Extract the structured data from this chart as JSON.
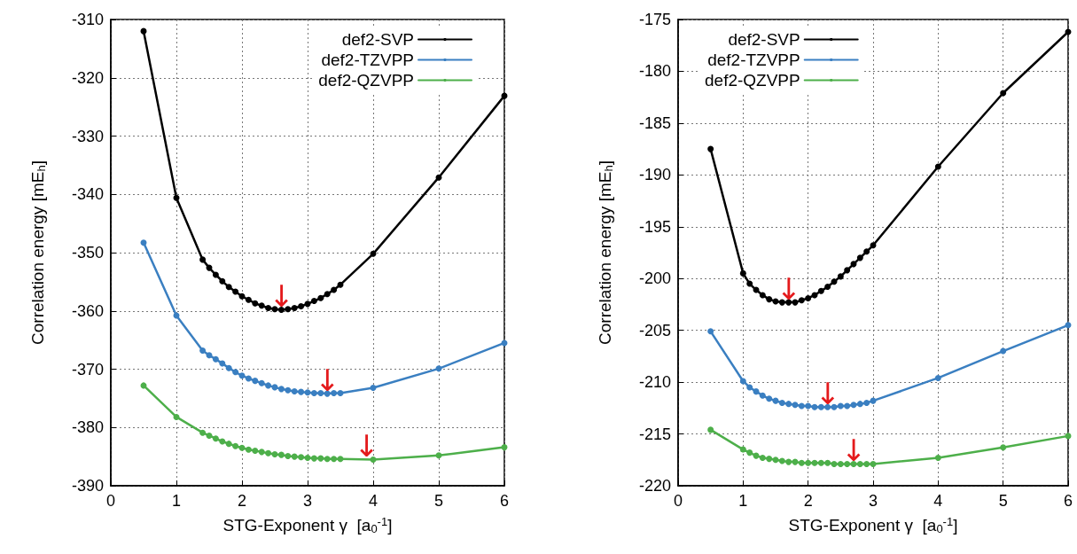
{
  "chart_data": [
    {
      "type": "line",
      "xlabel": "STG-Exponent γ  [a$_{0}$$^{-1}$]",
      "ylabel": "Correlation energy [mE$_{h}$]",
      "xlim": [
        0,
        6
      ],
      "xticks": [
        0,
        1,
        2,
        3,
        4,
        5,
        6
      ],
      "ylim": [
        -390,
        -310
      ],
      "yticks": [
        -390,
        -380,
        -370,
        -360,
        -350,
        -340,
        -330,
        -320,
        -310
      ],
      "grid": true,
      "legend": "top right",
      "marker": "circle",
      "line_style": "solid",
      "series": [
        {
          "name": "def2-SVP",
          "color": "#000000",
          "x": [
            0.5,
            1,
            1.4,
            1.5,
            1.6,
            1.7,
            1.8,
            1.9,
            2.0,
            2.1,
            2.2,
            2.3,
            2.4,
            2.5,
            2.6,
            2.7,
            2.8,
            2.9,
            3.0,
            3.1,
            3.2,
            3.3,
            3.4,
            3.5,
            4,
            5,
            6
          ],
          "values": [
            -312,
            -340.6,
            -351.2,
            -352.6,
            -353.8,
            -354.9,
            -355.9,
            -356.7,
            -357.5,
            -358.1,
            -358.7,
            -359.1,
            -359.5,
            -359.7,
            -359.8,
            -359.7,
            -359.5,
            -359.2,
            -358.8,
            -358.3,
            -357.8,
            -357.1,
            -356.4,
            -355.5,
            -350.2,
            -337.1,
            -323.1
          ]
        },
        {
          "name": "def2-TZVPP",
          "color": "#3a7fc1",
          "x": [
            0.5,
            1,
            1.4,
            1.5,
            1.6,
            1.7,
            1.8,
            1.9,
            2.0,
            2.1,
            2.2,
            2.3,
            2.4,
            2.5,
            2.6,
            2.7,
            2.8,
            2.9,
            3.0,
            3.1,
            3.2,
            3.3,
            3.4,
            3.5,
            4,
            5,
            6
          ],
          "values": [
            -348.3,
            -360.8,
            -366.8,
            -367.6,
            -368.3,
            -369.0,
            -369.8,
            -370.5,
            -371.1,
            -371.6,
            -372.0,
            -372.4,
            -372.8,
            -373.1,
            -373.4,
            -373.6,
            -373.8,
            -373.9,
            -374.0,
            -374.1,
            -374.1,
            -374.2,
            -374.1,
            -374.1,
            -373.2,
            -369.9,
            -365.5
          ]
        },
        {
          "name": "def2-QZVPP",
          "color": "#4daf4a",
          "x": [
            0.5,
            1,
            1.4,
            1.5,
            1.6,
            1.7,
            1.8,
            1.9,
            2.0,
            2.1,
            2.2,
            2.3,
            2.4,
            2.5,
            2.6,
            2.7,
            2.8,
            2.9,
            3.0,
            3.1,
            3.2,
            3.3,
            3.4,
            3.5,
            4,
            5,
            6
          ],
          "values": [
            -372.8,
            -378.2,
            -380.9,
            -381.4,
            -381.9,
            -382.4,
            -382.8,
            -383.2,
            -383.5,
            -383.8,
            -384.0,
            -384.2,
            -384.4,
            -384.6,
            -384.7,
            -384.9,
            -385.0,
            -385.1,
            -385.2,
            -385.3,
            -385.3,
            -385.4,
            -385.4,
            -385.4,
            -385.5,
            -384.8,
            -383.4
          ]
        }
      ],
      "annotations": [
        {
          "text": "↓",
          "x": 2.6,
          "y": -359.8
        },
        {
          "text": "↓",
          "x": 3.3,
          "y": -374.2
        },
        {
          "text": "↓",
          "x": 3.9,
          "y": -385.5
        }
      ]
    },
    {
      "type": "line",
      "xlabel": "STG-Exponent γ  [a$_{0}$$^{-1}$]",
      "ylabel": "Correlation energy [mE$_{h}$]",
      "xlim": [
        0,
        6
      ],
      "xticks": [
        0,
        1,
        2,
        3,
        4,
        5,
        6
      ],
      "ylim": [
        -220,
        -175
      ],
      "yticks": [
        -220,
        -215,
        -210,
        -205,
        -200,
        -195,
        -190,
        -185,
        -180,
        -175
      ],
      "grid": true,
      "legend": "top left",
      "marker": "circle",
      "line_style": "solid",
      "series": [
        {
          "name": "def2-SVP",
          "color": "#000000",
          "x": [
            0.5,
            1.0,
            1.1,
            1.2,
            1.3,
            1.4,
            1.5,
            1.6,
            1.7,
            1.8,
            1.9,
            2.0,
            2.1,
            2.2,
            2.3,
            2.4,
            2.5,
            2.6,
            2.7,
            2.8,
            2.9,
            3.0,
            4,
            5,
            6
          ],
          "values": [
            -187.5,
            -199.5,
            -200.5,
            -201.1,
            -201.6,
            -202.0,
            -202.2,
            -202.3,
            -202.3,
            -202.3,
            -202.1,
            -201.9,
            -201.6,
            -201.2,
            -200.8,
            -200.3,
            -199.8,
            -199.2,
            -198.6,
            -198.0,
            -197.4,
            -196.8,
            -189.2,
            -182.1,
            -176.2
          ]
        },
        {
          "name": "def2-TZVPP",
          "color": "#3a7fc1",
          "x": [
            0.5,
            1.0,
            1.1,
            1.2,
            1.3,
            1.4,
            1.5,
            1.6,
            1.7,
            1.8,
            1.9,
            2.0,
            2.1,
            2.2,
            2.3,
            2.4,
            2.5,
            2.6,
            2.7,
            2.8,
            2.9,
            3.0,
            4,
            5,
            6
          ],
          "values": [
            -205.1,
            -209.9,
            -210.5,
            -210.9,
            -211.3,
            -211.6,
            -211.8,
            -212.0,
            -212.1,
            -212.2,
            -212.3,
            -212.3,
            -212.4,
            -212.4,
            -212.4,
            -212.4,
            -212.3,
            -212.3,
            -212.2,
            -212.1,
            -212.0,
            -211.8,
            -209.6,
            -207.0,
            -204.5
          ]
        },
        {
          "name": "def2-QZVPP",
          "color": "#4daf4a",
          "x": [
            0.5,
            1.0,
            1.1,
            1.2,
            1.3,
            1.4,
            1.5,
            1.6,
            1.7,
            1.8,
            1.9,
            2.0,
            2.1,
            2.2,
            2.3,
            2.4,
            2.5,
            2.6,
            2.7,
            2.8,
            2.9,
            3.0,
            4,
            5,
            6
          ],
          "values": [
            -214.6,
            -216.5,
            -216.8,
            -217.1,
            -217.3,
            -217.4,
            -217.5,
            -217.6,
            -217.7,
            -217.7,
            -217.8,
            -217.8,
            -217.8,
            -217.8,
            -217.8,
            -217.9,
            -217.9,
            -217.9,
            -217.9,
            -217.9,
            -217.9,
            -217.9,
            -217.3,
            -216.3,
            -215.2
          ]
        }
      ],
      "annotations": [
        {
          "text": "↓",
          "x": 1.7,
          "y": -202.3
        },
        {
          "text": "↓",
          "x": 2.3,
          "y": -212.4
        },
        {
          "text": "↓",
          "x": 2.7,
          "y": -217.9
        }
      ]
    }
  ]
}
